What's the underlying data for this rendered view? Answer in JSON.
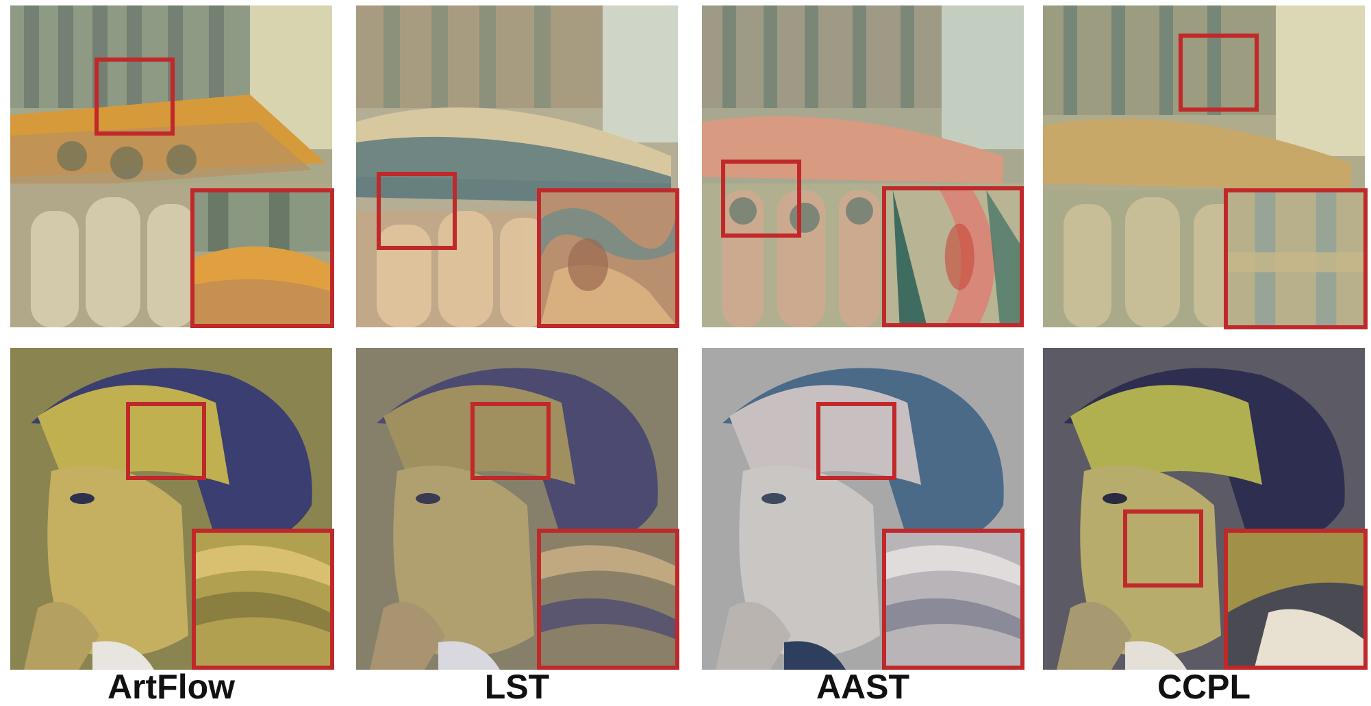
{
  "figure": {
    "columns": [
      {
        "id": "artflow",
        "label": "ArtFlow"
      },
      {
        "id": "lst",
        "label": "LST"
      },
      {
        "id": "aast",
        "label": "AAST"
      },
      {
        "id": "ccpl",
        "label": "CCPL"
      }
    ],
    "rows": [
      {
        "id": "architecture",
        "content": "stylized cathedral column capitals"
      },
      {
        "id": "portrait",
        "content": "stylized portrait of a woman with hair tied back"
      }
    ],
    "colors": {
      "highlight_box": "#c0282a",
      "label_text": "#111111",
      "background": "#ffffff"
    }
  }
}
